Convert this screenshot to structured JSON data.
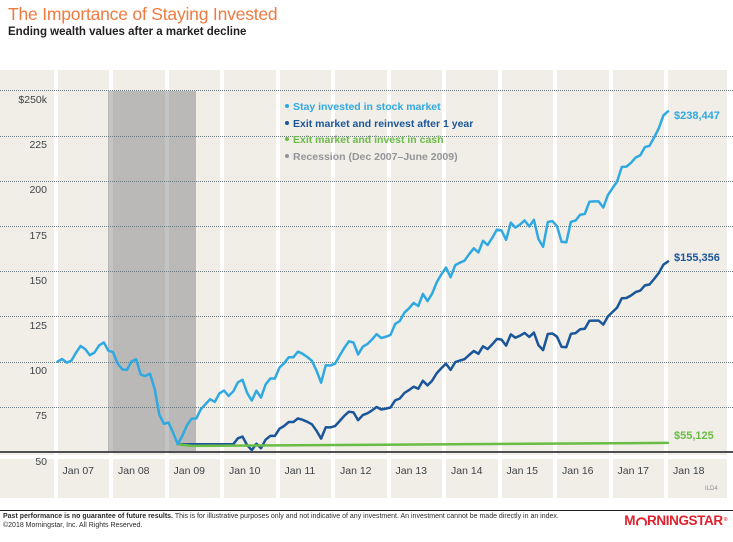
{
  "header": {
    "title": "The Importance of Staying Invested",
    "subtitle": "Ending wealth values after a market decline"
  },
  "colors": {
    "title_orange": "#ee7b41",
    "stay_invested": "#2fa9e0",
    "exit_reinvest": "#1a5699",
    "cash": "#69bd45",
    "recession_legend": "#939598",
    "recession_band": "rgba(109,114,120,0.42)",
    "plot_bg": "#f1ede7",
    "grid_dot": "#6f7d82",
    "baseline": "#4d4f53",
    "axis_text": "#3f4447",
    "logo_red": "#e0212d"
  },
  "legend": {
    "items": [
      {
        "label": "Stay invested in stock market",
        "series": "stay"
      },
      {
        "label": "Exit market and reinvest after 1 year",
        "series": "exit"
      },
      {
        "label": "Exit market and invest in cash",
        "series": "cash"
      },
      {
        "label": "Recession (Dec 2007–June 2009)",
        "series": "recession"
      }
    ]
  },
  "axes": {
    "y_labels": [
      "$250k",
      "225",
      "200",
      "175",
      "150",
      "125",
      "100",
      "75",
      "50"
    ],
    "y_values": [
      250,
      225,
      200,
      175,
      150,
      125,
      100,
      75,
      50
    ],
    "x_labels": [
      "Jan 07",
      "Jan 08",
      "Jan 09",
      "Jan 10",
      "Jan 11",
      "Jan 12",
      "Jan 13",
      "Jan 14",
      "Jan 15",
      "Jan 16",
      "Jan 17",
      "Jan 18"
    ]
  },
  "chart_data": {
    "type": "line",
    "title": "Ending wealth values after a market decline",
    "x_unit": "months since Jan 2007 (monthly values, Jan 2007–Jan 2018)",
    "ylim": [
      50,
      250
    ],
    "y_tick_step": 25,
    "grid": "dotted horizontal",
    "legend_position": "top-center inside plot",
    "units": "thousands of dollars (growth of $100k)",
    "recession": {
      "label": "Recession (Dec 2007–June 2009)",
      "start_month": 11,
      "end_month": 30
    },
    "series": [
      {
        "name": "Stay invested in stock market",
        "series": "stay",
        "end_label": "$238,447",
        "end_value": 238.447,
        "start_month": 0,
        "values": [
          100.0,
          101.5,
          99.5,
          100.6,
          105.0,
          108.7,
          106.9,
          103.6,
          105.1,
          109.0,
          110.7,
          106.1,
          105.3,
          99.0,
          95.8,
          95.4,
          100.1,
          101.4,
          92.9,
          92.1,
          93.4,
          85.1,
          70.8,
          65.7,
          66.4,
          60.8,
          54.4,
          59.2,
          64.9,
          68.5,
          68.6,
          73.8,
          76.5,
          79.3,
          77.8,
          82.5,
          84.1,
          81.1,
          83.6,
          88.6,
          90.0,
          82.8,
          78.5,
          84.0,
          80.2,
          87.4,
          90.7,
          90.7,
          96.8,
          99.1,
          102.5,
          102.5,
          105.6,
          104.4,
          102.6,
          100.5,
          95.1,
          88.4,
          98.1,
          97.9,
          98.9,
          103.3,
          107.7,
          111.3,
          110.6,
          104.0,
          108.3,
          109.8,
          112.3,
          115.2,
          113.1,
          113.8,
          114.8,
          120.8,
          122.5,
          127.1,
          129.5,
          132.5,
          130.8,
          137.5,
          133.5,
          137.6,
          144.0,
          148.3,
          152.0,
          146.7,
          153.4,
          154.7,
          155.8,
          159.4,
          162.7,
          160.4,
          166.8,
          164.5,
          168.5,
          173.0,
          172.5,
          167.4,
          176.9,
          174.1,
          175.8,
          178.1,
          174.7,
          178.4,
          167.7,
          163.5,
          177.2,
          177.7,
          174.9,
          166.2,
          166.0,
          177.3,
          178.0,
          181.2,
          181.7,
          188.4,
          188.6,
          188.6,
          185.2,
          192.1,
          195.9,
          199.6,
          207.6,
          207.8,
          209.9,
          212.8,
          214.1,
          218.6,
          219.3,
          223.9,
          229.0,
          236.1,
          238.4
        ]
      },
      {
        "name": "Exit market and reinvest after 1 year",
        "series": "exit",
        "end_label": "$155,356",
        "end_value": 155.356,
        "start_month": 26,
        "values": [
          54.4,
          54.4,
          54.4,
          54.4,
          54.4,
          54.4,
          54.4,
          54.4,
          54.4,
          54.4,
          54.4,
          54.4,
          54.4,
          57.7,
          58.6,
          53.9,
          51.1,
          54.7,
          52.2,
          56.9,
          59.0,
          59.0,
          63.0,
          64.5,
          66.7,
          66.7,
          68.7,
          67.9,
          66.8,
          65.4,
          61.9,
          57.5,
          63.8,
          63.7,
          64.4,
          67.2,
          70.1,
          72.4,
          72.0,
          67.7,
          70.5,
          71.5,
          73.1,
          75.0,
          73.6,
          74.1,
          74.7,
          78.6,
          79.7,
          82.7,
          84.3,
          86.2,
          85.1,
          89.5,
          86.9,
          89.5,
          93.7,
          96.5,
          98.9,
          95.5,
          99.8,
          100.7,
          101.4,
          103.7,
          105.9,
          104.4,
          108.5,
          107.0,
          109.6,
          112.6,
          112.2,
          108.9,
          115.1,
          113.3,
          114.4,
          115.9,
          113.7,
          116.1,
          109.1,
          106.4,
          115.3,
          115.6,
          113.8,
          108.2,
          108.0,
          115.4,
          115.8,
          117.9,
          118.2,
          122.6,
          122.7,
          122.7,
          120.5,
          125.0,
          127.5,
          129.9,
          135.1,
          135.2,
          136.6,
          138.5,
          139.3,
          142.2,
          142.7,
          145.7,
          149.0,
          153.6,
          155.4
        ]
      },
      {
        "name": "Exit market and invest in cash",
        "series": "cash",
        "end_label": "$55,125",
        "end_value": 55.125,
        "start_month": 26,
        "keypoints": [
          [
            26,
            54.4
          ],
          [
            29,
            53.5
          ],
          [
            132,
            55.125
          ]
        ]
      }
    ]
  },
  "footer": {
    "line1_bold": "Past performance is no guarantee of future results.",
    "line1_rest": " This is for illustrative purposes only and not indicative of any investment. An investment cannot be made directly in an index.",
    "line2": "©2018 Morningstar, Inc. All Rights Reserved.",
    "tag": "ILD4"
  },
  "logo": {
    "pre": "M",
    "post": "RNINGSTAR",
    "reg": "®"
  }
}
